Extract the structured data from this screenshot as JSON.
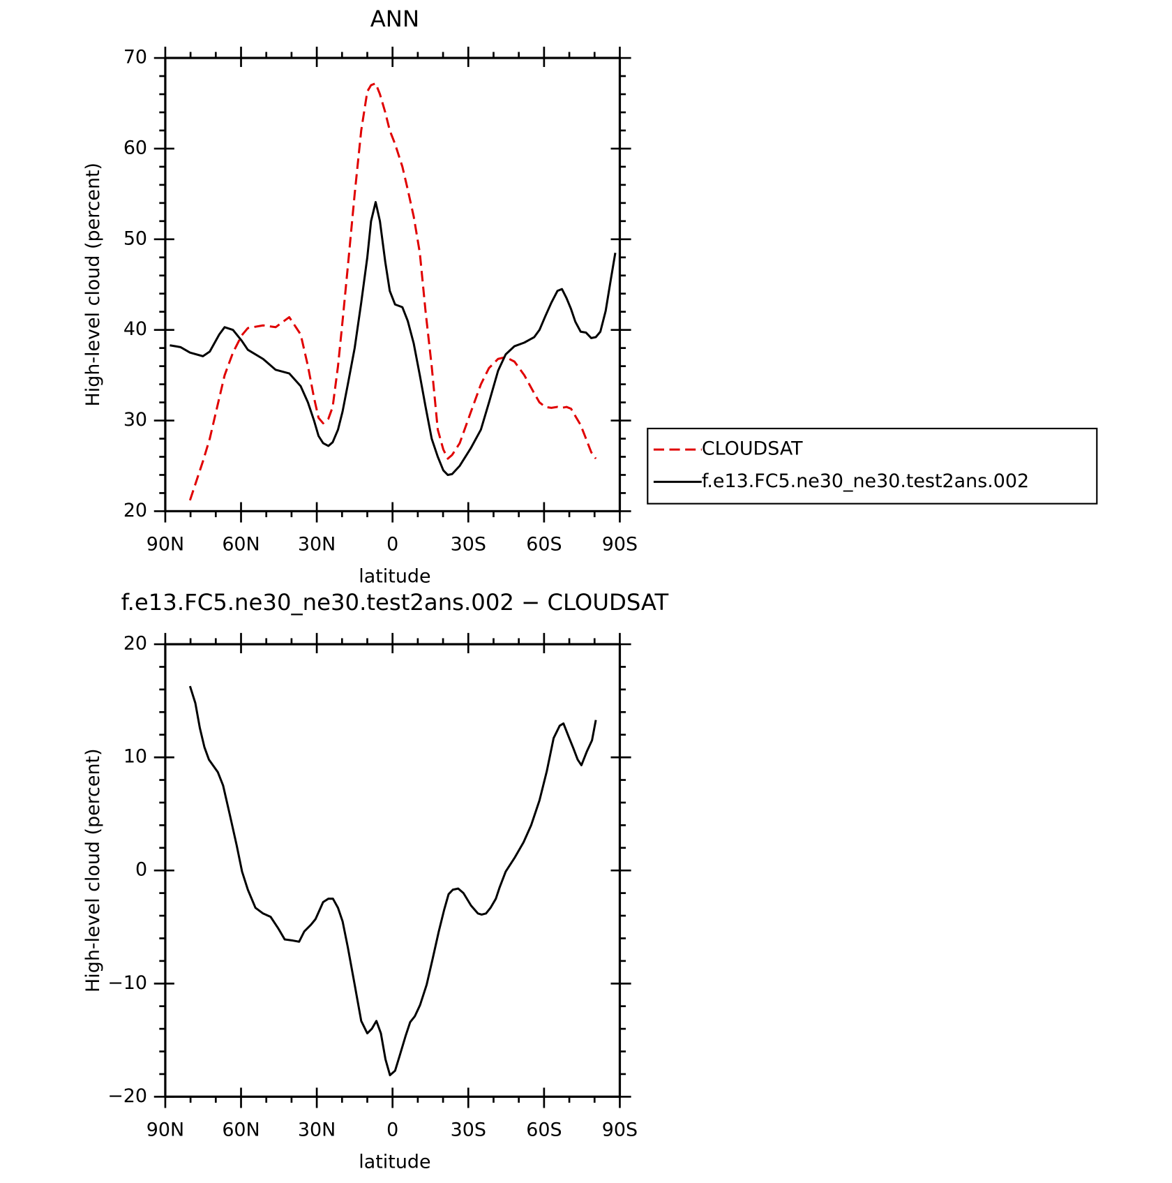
{
  "chart_data": [
    {
      "type": "line",
      "title": "ANN",
      "xlabel": "latitude",
      "ylabel": "High-level cloud (percent)",
      "x": [
        88.2,
        84.0,
        80.2,
        75.1,
        72.4,
        68.6,
        66.5,
        63.2,
        59.7,
        57.3,
        51.3,
        46.3,
        40.9,
        36.4,
        33.5,
        31.1,
        29.3,
        27.5,
        25.4,
        23.7,
        21.6,
        19.8,
        17.7,
        15.0,
        12.4,
        10.0,
        8.5,
        6.7,
        5.0,
        2.9,
        1.1,
        -1.0,
        -3.9,
        -6.0,
        -8.4,
        -10.8,
        -13.1,
        -15.5,
        -17.9,
        -20.1,
        -21.9,
        -23.6,
        -26.6,
        -31.1,
        -35.0,
        -38.2,
        -41.8,
        -44.8,
        -48.3,
        -52.2,
        -56.1,
        -58.2,
        -60.5,
        -62.9,
        -65.3,
        -67.1,
        -68.9,
        -70.7,
        -72.4,
        -74.5,
        -76.6,
        -78.7,
        -80.5,
        -82.3,
        -84.4,
        -86.4,
        -88.2
      ],
      "series": [
        {
          "name": "CLOUDSAT",
          "color": "#e00000",
          "dashed": true,
          "values": [
            null,
            null,
            21.2,
            25.5,
            28.0,
            32.5,
            35.0,
            37.5,
            39.4,
            40.2,
            40.5,
            40.3,
            41.4,
            39.5,
            36.0,
            32.5,
            30.3,
            29.7,
            30.2,
            31.5,
            36.0,
            41.0,
            47.0,
            55.0,
            62.0,
            66.3,
            67.0,
            67.2,
            66.0,
            64.0,
            62.0,
            60.5,
            58.0,
            55.5,
            52.5,
            48.5,
            42.0,
            36.0,
            29.0,
            26.8,
            25.8,
            26.2,
            27.5,
            31.0,
            34.0,
            35.8,
            36.8,
            37.0,
            36.5,
            35.0,
            33.0,
            32.0,
            31.5,
            31.4,
            31.5,
            31.4,
            31.5,
            31.3,
            30.5,
            29.5,
            28.0,
            26.5,
            25.8,
            null,
            null,
            null,
            null
          ]
        },
        {
          "name": "f.e13.FC5.ne30_ne30.test2ans.002",
          "color": "#000000",
          "dashed": false,
          "values": [
            38.3,
            38.1,
            37.5,
            37.1,
            37.6,
            39.5,
            40.3,
            40.0,
            38.8,
            37.8,
            36.8,
            35.6,
            35.2,
            33.8,
            32.0,
            30.0,
            28.3,
            27.5,
            27.2,
            27.6,
            29.0,
            31.0,
            34.0,
            38.0,
            43.0,
            48.0,
            52.0,
            54.1,
            52.0,
            47.5,
            44.3,
            42.8,
            42.5,
            41.0,
            38.5,
            35.0,
            31.5,
            28.0,
            26.0,
            24.5,
            24.0,
            24.1,
            25.0,
            27.0,
            29.0,
            32.0,
            35.5,
            37.3,
            38.2,
            38.6,
            39.2,
            40.0,
            41.5,
            43.0,
            44.3,
            44.5,
            43.5,
            42.3,
            40.9,
            39.8,
            39.7,
            39.1,
            39.2,
            39.8,
            42.1,
            45.5,
            48.5
          ]
        }
      ],
      "xlim": [
        90,
        -90
      ],
      "xticks": [
        {
          "value": 90,
          "label": "90N"
        },
        {
          "value": 60,
          "label": "60N"
        },
        {
          "value": 30,
          "label": "30N"
        },
        0,
        {
          "value": -30,
          "label": "30S"
        },
        {
          "value": -60,
          "label": "60S"
        },
        {
          "value": -90,
          "label": "90S"
        }
      ],
      "xminorticks": [
        80,
        70,
        50,
        40,
        20,
        10,
        -10,
        -20,
        -40,
        -50,
        -70,
        -80
      ],
      "ylim": [
        20,
        70
      ],
      "yticks": [
        20,
        30,
        40,
        50,
        60,
        70
      ],
      "yminorticks": [
        22,
        24,
        26,
        28,
        32,
        34,
        36,
        38,
        42,
        44,
        46,
        48,
        52,
        54,
        56,
        58,
        62,
        64,
        66,
        68
      ],
      "legend": "right"
    },
    {
      "type": "line",
      "title": "f.e13.FC5.ne30_ne30.test2ans.002 − CLOUDSAT",
      "xlabel": "latitude",
      "ylabel": "High-level cloud (percent)",
      "x": [
        80.2,
        78.1,
        76.3,
        74.5,
        72.7,
        69.2,
        67.1,
        64.4,
        61.7,
        59.6,
        57.3,
        54.3,
        51.3,
        48.3,
        45.3,
        42.7,
        39.4,
        37.0,
        35.0,
        32.3,
        30.5,
        27.5,
        25.4,
        23.6,
        21.6,
        19.8,
        17.7,
        15.0,
        12.4,
        10.0,
        8.2,
        6.4,
        4.6,
        2.8,
        1.0,
        -1.0,
        -2.8,
        -5.2,
        -7.0,
        -8.8,
        -10.9,
        -13.5,
        -15.9,
        -18.3,
        -20.4,
        -22.2,
        -23.9,
        -26.0,
        -28.1,
        -31.1,
        -33.8,
        -35.3,
        -37.0,
        -38.8,
        -40.9,
        -42.4,
        -44.8,
        -48.3,
        -51.9,
        -54.9,
        -58.2,
        -61.1,
        -63.8,
        -66.2,
        -67.7,
        -69.8,
        -71.6,
        -73.3,
        -74.8,
        -76.9,
        -79.0,
        -80.5
      ],
      "series": [
        {
          "color": "#000000",
          "dashed": false,
          "values": [
            16.3,
            14.8,
            12.6,
            10.9,
            9.8,
            8.7,
            7.5,
            4.9,
            2.2,
            -0.1,
            -1.7,
            -3.3,
            -3.8,
            -4.1,
            -5.1,
            -6.1,
            -6.2,
            -6.3,
            -5.4,
            -4.8,
            -4.3,
            -2.8,
            -2.5,
            -2.5,
            -3.3,
            -4.5,
            -6.8,
            -10.1,
            -13.3,
            -14.4,
            -14.0,
            -13.3,
            -14.4,
            -16.7,
            -18.1,
            -17.7,
            -16.4,
            -14.6,
            -13.4,
            -12.9,
            -11.9,
            -10.1,
            -7.8,
            -5.4,
            -3.5,
            -2.1,
            -1.7,
            -1.6,
            -2.0,
            -3.1,
            -3.8,
            -3.9,
            -3.8,
            -3.3,
            -2.5,
            -1.5,
            -0.1,
            1.1,
            2.5,
            4.0,
            6.2,
            8.8,
            11.7,
            12.8,
            13.0,
            11.8,
            10.8,
            9.8,
            9.3,
            10.5,
            11.5,
            13.3
          ]
        }
      ],
      "xlim": [
        90,
        -90
      ],
      "xticks": [
        {
          "value": 90,
          "label": "90N"
        },
        {
          "value": 60,
          "label": "60N"
        },
        {
          "value": 30,
          "label": "30N"
        },
        0,
        {
          "value": -30,
          "label": "30S"
        },
        {
          "value": -60,
          "label": "60S"
        },
        {
          "value": -90,
          "label": "90S"
        }
      ],
      "xminorticks": [
        80,
        70,
        50,
        40,
        20,
        10,
        -10,
        -20,
        -40,
        -50,
        -70,
        -80
      ],
      "ylim": [
        -20,
        20
      ],
      "yticks": [
        {
          "value": -20,
          "label": "−20"
        },
        {
          "value": -10,
          "label": "−10"
        },
        0,
        10,
        20
      ],
      "yminorticks": [
        -18,
        -16,
        -14,
        -12,
        -8,
        -6,
        -4,
        -2,
        2,
        4,
        6,
        8,
        12,
        14,
        16,
        18
      ]
    }
  ]
}
